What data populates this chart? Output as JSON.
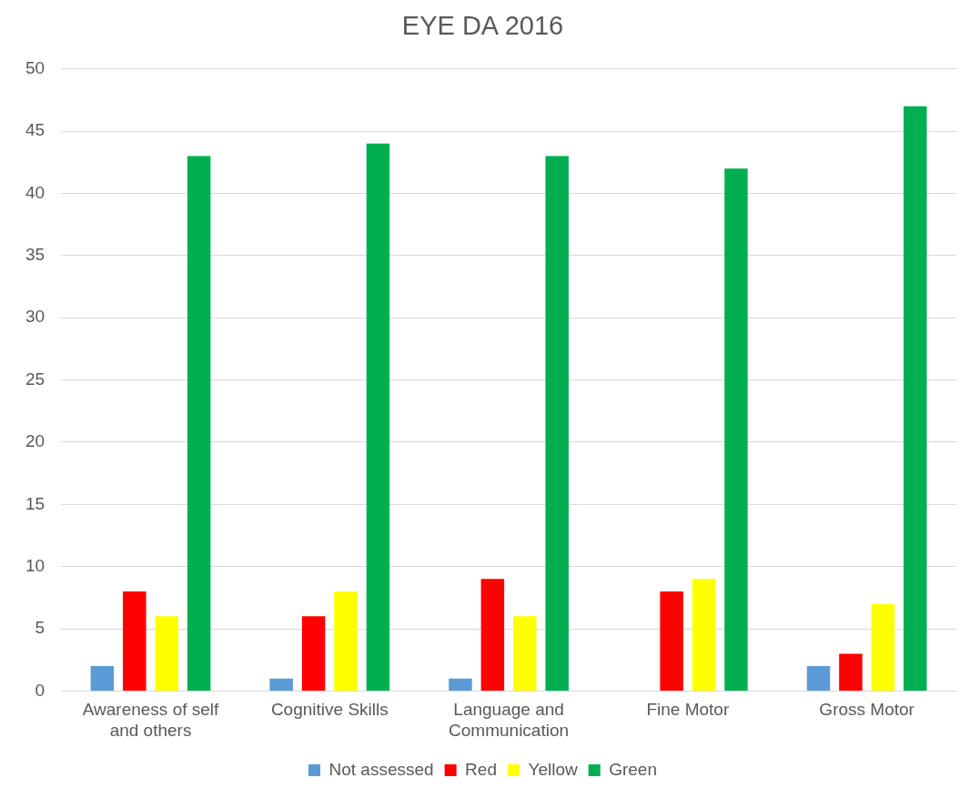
{
  "chart_data": {
    "type": "bar",
    "title": "EYE DA 2016",
    "categories": [
      "Awareness of self and others",
      "Cognitive Skills",
      "Language and Communication",
      "Fine Motor",
      "Gross Motor"
    ],
    "series": [
      {
        "name": "Not assessed",
        "color": "#5b9bd5",
        "values": [
          2,
          1,
          1,
          0,
          2
        ]
      },
      {
        "name": "Red",
        "color": "#ff0000",
        "values": [
          8,
          6,
          9,
          8,
          3
        ]
      },
      {
        "name": "Yellow",
        "color": "#ffff00",
        "values": [
          6,
          8,
          6,
          9,
          7
        ]
      },
      {
        "name": "Green",
        "color": "#00b050",
        "values": [
          43,
          44,
          43,
          42,
          47
        ]
      }
    ],
    "ylim": [
      0,
      50
    ],
    "yticks": [
      0,
      5,
      10,
      15,
      20,
      25,
      30,
      35,
      40,
      45,
      50
    ],
    "grid": "y",
    "legend": "bottom"
  }
}
